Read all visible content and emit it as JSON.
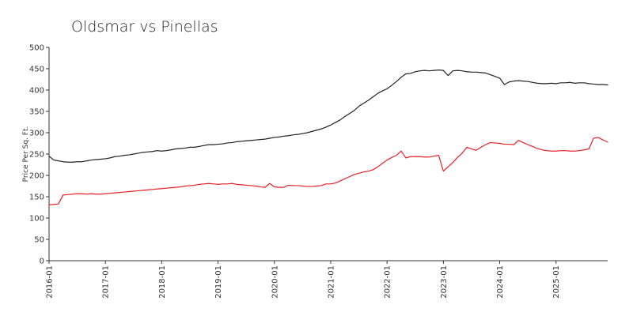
{
  "chart_data": {
    "type": "line",
    "title": "Oldsmar vs Pinellas",
    "xlabel": "",
    "ylabel": "Price Per Sq. Ft.",
    "ylim": [
      0,
      500
    ],
    "xlim": [
      "2016-01",
      "2025-12"
    ],
    "y_ticks": [
      0,
      50,
      100,
      150,
      200,
      250,
      300,
      350,
      400,
      450,
      500
    ],
    "x_ticks": [
      "2016-01",
      "2017-01",
      "2018-01",
      "2019-01",
      "2020-01",
      "2021-01",
      "2022-01",
      "2023-01",
      "2024-01",
      "2025-01"
    ],
    "grid": false,
    "legend": "none",
    "series": [
      {
        "color": "#222222",
        "points": [
          [
            "2016-01",
            245
          ],
          [
            "2016-02",
            236
          ],
          [
            "2016-03",
            234
          ],
          [
            "2016-04",
            232
          ],
          [
            "2016-05",
            231
          ],
          [
            "2016-06",
            231
          ],
          [
            "2016-07",
            232
          ],
          [
            "2016-08",
            232
          ],
          [
            "2016-09",
            234
          ],
          [
            "2016-10",
            236
          ],
          [
            "2016-11",
            237
          ],
          [
            "2016-12",
            238
          ],
          [
            "2017-01",
            239
          ],
          [
            "2017-02",
            241
          ],
          [
            "2017-03",
            244
          ],
          [
            "2017-04",
            245
          ],
          [
            "2017-05",
            247
          ],
          [
            "2017-06",
            248
          ],
          [
            "2017-07",
            250
          ],
          [
            "2017-08",
            252
          ],
          [
            "2017-09",
            254
          ],
          [
            "2017-10",
            255
          ],
          [
            "2017-11",
            256
          ],
          [
            "2017-12",
            258
          ],
          [
            "2018-01",
            257
          ],
          [
            "2018-02",
            258
          ],
          [
            "2018-03",
            260
          ],
          [
            "2018-04",
            262
          ],
          [
            "2018-05",
            263
          ],
          [
            "2018-06",
            264
          ],
          [
            "2018-07",
            266
          ],
          [
            "2018-08",
            266
          ],
          [
            "2018-09",
            268
          ],
          [
            "2018-10",
            270
          ],
          [
            "2018-11",
            272
          ],
          [
            "2018-12",
            272
          ],
          [
            "2019-01",
            273
          ],
          [
            "2019-02",
            274
          ],
          [
            "2019-03",
            276
          ],
          [
            "2019-04",
            277
          ],
          [
            "2019-05",
            279
          ],
          [
            "2019-06",
            280
          ],
          [
            "2019-07",
            281
          ],
          [
            "2019-08",
            282
          ],
          [
            "2019-09",
            283
          ],
          [
            "2019-10",
            284
          ],
          [
            "2019-11",
            285
          ],
          [
            "2019-12",
            287
          ],
          [
            "2020-01",
            289
          ],
          [
            "2020-02",
            290
          ],
          [
            "2020-03",
            292
          ],
          [
            "2020-04",
            293
          ],
          [
            "2020-05",
            295
          ],
          [
            "2020-06",
            296
          ],
          [
            "2020-07",
            298
          ],
          [
            "2020-08",
            300
          ],
          [
            "2020-09",
            303
          ],
          [
            "2020-10",
            306
          ],
          [
            "2020-11",
            309
          ],
          [
            "2020-12",
            313
          ],
          [
            "2021-01",
            318
          ],
          [
            "2021-02",
            324
          ],
          [
            "2021-03",
            330
          ],
          [
            "2021-04",
            338
          ],
          [
            "2021-05",
            345
          ],
          [
            "2021-06",
            352
          ],
          [
            "2021-07",
            362
          ],
          [
            "2021-08",
            369
          ],
          [
            "2021-09",
            376
          ],
          [
            "2021-10",
            384
          ],
          [
            "2021-11",
            392
          ],
          [
            "2021-12",
            398
          ],
          [
            "2022-01",
            403
          ],
          [
            "2022-02",
            411
          ],
          [
            "2022-03",
            420
          ],
          [
            "2022-04",
            430
          ],
          [
            "2022-05",
            438
          ],
          [
            "2022-06",
            439
          ],
          [
            "2022-07",
            443
          ],
          [
            "2022-08",
            445
          ],
          [
            "2022-09",
            446
          ],
          [
            "2022-10",
            445
          ],
          [
            "2022-11",
            446
          ],
          [
            "2022-12",
            447
          ],
          [
            "2023-01",
            446
          ],
          [
            "2023-02",
            434
          ],
          [
            "2023-03",
            445
          ],
          [
            "2023-04",
            446
          ],
          [
            "2023-05",
            445
          ],
          [
            "2023-06",
            443
          ],
          [
            "2023-07",
            442
          ],
          [
            "2023-08",
            442
          ],
          [
            "2023-09",
            441
          ],
          [
            "2023-10",
            440
          ],
          [
            "2023-11",
            436
          ],
          [
            "2023-12",
            432
          ],
          [
            "2024-01",
            428
          ],
          [
            "2024-02",
            413
          ],
          [
            "2024-03",
            419
          ],
          [
            "2024-04",
            421
          ],
          [
            "2024-05",
            422
          ],
          [
            "2024-06",
            421
          ],
          [
            "2024-07",
            420
          ],
          [
            "2024-08",
            418
          ],
          [
            "2024-09",
            416
          ],
          [
            "2024-10",
            415
          ],
          [
            "2024-11",
            415
          ],
          [
            "2024-12",
            416
          ],
          [
            "2025-01",
            415
          ],
          [
            "2025-02",
            417
          ],
          [
            "2025-03",
            417
          ],
          [
            "2025-04",
            418
          ],
          [
            "2025-05",
            416
          ],
          [
            "2025-06",
            417
          ],
          [
            "2025-07",
            417
          ],
          [
            "2025-08",
            415
          ],
          [
            "2025-09",
            414
          ],
          [
            "2025-10",
            413
          ],
          [
            "2025-11",
            413
          ],
          [
            "2025-12",
            412
          ]
        ]
      },
      {
        "color": "#e8202a",
        "points": [
          [
            "2016-01",
            131
          ],
          [
            "2016-02",
            132
          ],
          [
            "2016-03",
            133
          ],
          [
            "2016-04",
            154
          ],
          [
            "2016-05",
            155
          ],
          [
            "2016-06",
            156
          ],
          [
            "2016-07",
            157
          ],
          [
            "2016-08",
            157
          ],
          [
            "2016-09",
            156
          ],
          [
            "2016-10",
            157
          ],
          [
            "2016-11",
            156
          ],
          [
            "2016-12",
            156
          ],
          [
            "2017-01",
            157
          ],
          [
            "2017-02",
            158
          ],
          [
            "2017-03",
            159
          ],
          [
            "2017-04",
            160
          ],
          [
            "2017-05",
            161
          ],
          [
            "2017-06",
            162
          ],
          [
            "2017-07",
            163
          ],
          [
            "2017-08",
            164
          ],
          [
            "2017-09",
            165
          ],
          [
            "2017-10",
            166
          ],
          [
            "2017-11",
            167
          ],
          [
            "2017-12",
            168
          ],
          [
            "2018-01",
            169
          ],
          [
            "2018-02",
            170
          ],
          [
            "2018-03",
            171
          ],
          [
            "2018-04",
            172
          ],
          [
            "2018-05",
            173
          ],
          [
            "2018-06",
            175
          ],
          [
            "2018-07",
            176
          ],
          [
            "2018-08",
            177
          ],
          [
            "2018-09",
            179
          ],
          [
            "2018-10",
            180
          ],
          [
            "2018-11",
            181
          ],
          [
            "2018-12",
            180
          ],
          [
            "2019-01",
            179
          ],
          [
            "2019-02",
            180
          ],
          [
            "2019-03",
            180
          ],
          [
            "2019-04",
            181
          ],
          [
            "2019-05",
            179
          ],
          [
            "2019-06",
            178
          ],
          [
            "2019-07",
            177
          ],
          [
            "2019-08",
            176
          ],
          [
            "2019-09",
            175
          ],
          [
            "2019-10",
            173
          ],
          [
            "2019-11",
            172
          ],
          [
            "2019-12",
            181
          ],
          [
            "2020-01",
            173
          ],
          [
            "2020-02",
            172
          ],
          [
            "2020-03",
            172
          ],
          [
            "2020-04",
            177
          ],
          [
            "2020-05",
            176
          ],
          [
            "2020-06",
            176
          ],
          [
            "2020-07",
            175
          ],
          [
            "2020-08",
            174
          ],
          [
            "2020-09",
            174
          ],
          [
            "2020-10",
            175
          ],
          [
            "2020-11",
            176
          ],
          [
            "2020-12",
            180
          ],
          [
            "2021-01",
            180
          ],
          [
            "2021-02",
            182
          ],
          [
            "2021-03",
            187
          ],
          [
            "2021-04",
            192
          ],
          [
            "2021-05",
            197
          ],
          [
            "2021-06",
            202
          ],
          [
            "2021-07",
            205
          ],
          [
            "2021-08",
            208
          ],
          [
            "2021-09",
            210
          ],
          [
            "2021-10",
            213
          ],
          [
            "2021-11",
            220
          ],
          [
            "2021-12",
            228
          ],
          [
            "2022-01",
            236
          ],
          [
            "2022-02",
            242
          ],
          [
            "2022-03",
            247
          ],
          [
            "2022-04",
            257
          ],
          [
            "2022-05",
            241
          ],
          [
            "2022-06",
            244
          ],
          [
            "2022-07",
            244
          ],
          [
            "2022-08",
            244
          ],
          [
            "2022-09",
            243
          ],
          [
            "2022-10",
            243
          ],
          [
            "2022-11",
            245
          ],
          [
            "2022-12",
            247
          ],
          [
            "2023-01",
            210
          ],
          [
            "2023-02",
            220
          ],
          [
            "2023-03",
            230
          ],
          [
            "2023-04",
            242
          ],
          [
            "2023-05",
            252
          ],
          [
            "2023-06",
            266
          ],
          [
            "2023-07",
            262
          ],
          [
            "2023-08",
            259
          ],
          [
            "2023-09",
            266
          ],
          [
            "2023-10",
            272
          ],
          [
            "2023-11",
            277
          ],
          [
            "2023-12",
            276
          ],
          [
            "2024-01",
            275
          ],
          [
            "2024-02",
            273
          ],
          [
            "2024-03",
            273
          ],
          [
            "2024-04",
            272
          ],
          [
            "2024-05",
            282
          ],
          [
            "2024-06",
            277
          ],
          [
            "2024-07",
            272
          ],
          [
            "2024-08",
            268
          ],
          [
            "2024-09",
            263
          ],
          [
            "2024-10",
            260
          ],
          [
            "2024-11",
            258
          ],
          [
            "2024-12",
            257
          ],
          [
            "2025-01",
            257
          ],
          [
            "2025-02",
            258
          ],
          [
            "2025-03",
            258
          ],
          [
            "2025-04",
            257
          ],
          [
            "2025-05",
            257
          ],
          [
            "2025-06",
            258
          ],
          [
            "2025-07",
            260
          ],
          [
            "2025-08",
            262
          ],
          [
            "2025-09",
            287
          ],
          [
            "2025-10",
            289
          ],
          [
            "2025-11",
            283
          ],
          [
            "2025-12",
            278
          ]
        ]
      }
    ]
  }
}
